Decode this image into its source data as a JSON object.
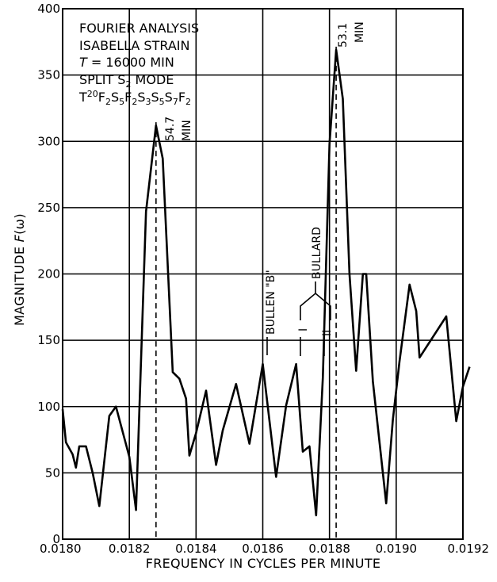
{
  "chart_data": {
    "type": "line",
    "title": "",
    "xlabel": "FREQUENCY IN CYCLES PER MINUTE",
    "ylabel": "MAGNITUDE F(ω)",
    "ylabel_parts": {
      "main": "MAGNITUDE ",
      "italic": "F",
      "rest": "(ω)"
    },
    "xlim": [
      0.018,
      0.0192
    ],
    "ylim": [
      0,
      400
    ],
    "x_ticks": [
      0.018,
      0.0182,
      0.0184,
      0.0186,
      0.0188,
      0.019,
      0.0192
    ],
    "x_tick_labels": [
      "0.0180",
      "0.0182",
      "0.0184",
      "0.0186",
      "0.0188",
      "0.0190",
      "0.0192"
    ],
    "y_ticks": [
      0,
      50,
      100,
      150,
      200,
      250,
      300,
      350,
      400
    ],
    "y_tick_labels": [
      "0",
      "50",
      "100",
      "150",
      "200",
      "250",
      "300",
      "350",
      "400"
    ],
    "grid": true,
    "info_box": {
      "line1": "FOURIER ANALYSIS",
      "line2": "ISABELLA STRAIN",
      "line3_italic": "T",
      "line3_rest": " = 16000 MIN",
      "line4_main": "SPLIT S",
      "line4_sub": "2",
      "line4_rest": " MODE",
      "line5": [
        {
          "t": "T"
        },
        {
          "sup": "20"
        },
        {
          "t": "F"
        },
        {
          "sub": "2"
        },
        {
          "t": "S"
        },
        {
          "sub": "5"
        },
        {
          "t": "F"
        },
        {
          "sub": "2"
        },
        {
          "t": "S"
        },
        {
          "sub": "3"
        },
        {
          "t": "S"
        },
        {
          "sub": "5"
        },
        {
          "t": "S"
        },
        {
          "sub": "7"
        },
        {
          "t": "F"
        },
        {
          "sub": "2"
        }
      ]
    },
    "annotations": {
      "peak1_value": "54.7",
      "peak1_unit": "MIN",
      "peak2_value": "53.1",
      "peak2_unit": "MIN",
      "bullen": "BULLEN \"B\"",
      "bullard": "BULLARD",
      "bullard_i": "I",
      "bullard_ii": "II"
    },
    "series": [
      {
        "x": [
          0.018,
          0.01801,
          0.01803,
          0.01804,
          0.01805,
          0.01807,
          0.01809,
          0.01811,
          0.01814,
          0.01816,
          0.0182,
          0.01822,
          0.01825,
          0.01828,
          0.0183,
          0.01833,
          0.01835,
          0.01837,
          0.01838,
          0.0184,
          0.01843,
          0.01844,
          0.01846,
          0.01848,
          0.01852,
          0.01856,
          0.0186,
          0.01864,
          0.01867,
          0.0187,
          0.01872,
          0.01874,
          0.01876,
          0.01878,
          0.0188,
          0.01882,
          0.01884,
          0.01886,
          0.01888,
          0.0189,
          0.01891,
          0.01893,
          0.01897,
          0.01899,
          0.01901,
          0.01904,
          0.01906,
          0.01907,
          0.01915,
          0.01918,
          0.0192,
          0.01922
        ],
        "y": [
          98,
          73,
          64,
          54,
          70,
          70,
          50,
          25,
          93,
          100,
          62,
          22,
          247,
          312,
          287,
          126,
          121,
          106,
          63,
          80,
          112,
          93,
          56,
          82,
          117,
          72,
          132,
          47,
          101,
          132,
          66,
          70,
          18,
          122,
          298,
          369,
          332,
          200,
          127,
          200,
          200,
          119,
          27,
          90,
          134,
          192,
          172,
          137,
          168,
          89,
          115,
          130
        ]
      }
    ],
    "peaks": [
      {
        "x": 0.01828,
        "y": 312
      },
      {
        "x": 0.01882,
        "y": 369
      }
    ]
  }
}
